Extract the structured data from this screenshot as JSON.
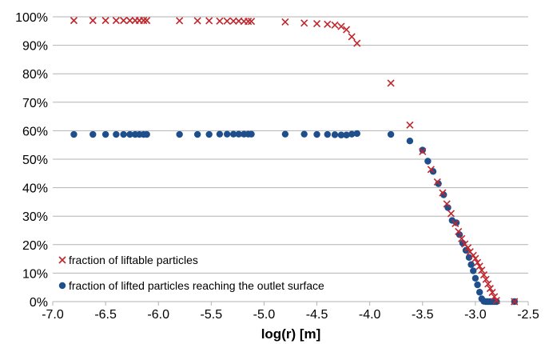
{
  "chart_data": {
    "type": "scatter",
    "xlabel": "log(r) [m]",
    "ylabel": "",
    "xlim": [
      -7.0,
      -2.5
    ],
    "ylim": [
      0,
      100
    ],
    "x_ticks": [
      "-7.0",
      "-6.5",
      "-6.0",
      "-5.5",
      "-5.0",
      "-4.5",
      "-4.0",
      "-3.5",
      "-3.0",
      "-2.5"
    ],
    "y_ticks": [
      "0%",
      "10%",
      "20%",
      "30%",
      "40%",
      "50%",
      "60%",
      "70%",
      "80%",
      "90%",
      "100%"
    ],
    "grid": "horizontal",
    "legend_position": "bottom-left",
    "series": [
      {
        "name": "fraction of liftable particles",
        "marker": "x",
        "color": "#c0272d",
        "points": [
          [
            -6.8,
            98.7
          ],
          [
            -6.62,
            98.7
          ],
          [
            -6.5,
            98.7
          ],
          [
            -6.4,
            98.7
          ],
          [
            -6.33,
            98.7
          ],
          [
            -6.27,
            98.7
          ],
          [
            -6.22,
            98.7
          ],
          [
            -6.18,
            98.7
          ],
          [
            -6.14,
            98.7
          ],
          [
            -6.11,
            98.7
          ],
          [
            -5.8,
            98.6
          ],
          [
            -5.63,
            98.6
          ],
          [
            -5.52,
            98.6
          ],
          [
            -5.42,
            98.5
          ],
          [
            -5.35,
            98.5
          ],
          [
            -5.29,
            98.5
          ],
          [
            -5.24,
            98.5
          ],
          [
            -5.19,
            98.4
          ],
          [
            -5.15,
            98.4
          ],
          [
            -5.12,
            98.4
          ],
          [
            -4.8,
            98.2
          ],
          [
            -4.62,
            97.8
          ],
          [
            -4.5,
            97.6
          ],
          [
            -4.4,
            97.4
          ],
          [
            -4.33,
            97.1
          ],
          [
            -4.27,
            96.6
          ],
          [
            -4.22,
            95.5
          ],
          [
            -4.17,
            93.0
          ],
          [
            -4.12,
            90.7
          ],
          [
            -3.8,
            76.7
          ],
          [
            -3.62,
            62.0
          ],
          [
            -3.5,
            52.7
          ],
          [
            -3.42,
            46.4
          ],
          [
            -3.36,
            42.0
          ],
          [
            -3.31,
            38.2
          ],
          [
            -3.27,
            34.3
          ],
          [
            -3.23,
            30.9
          ],
          [
            -3.19,
            27.4
          ],
          [
            -3.16,
            24.6
          ],
          [
            -3.13,
            22.1
          ],
          [
            -3.1,
            20.2
          ],
          [
            -3.07,
            18.9
          ],
          [
            -3.05,
            17.5
          ],
          [
            -3.02,
            16.2
          ],
          [
            -3.0,
            15.1
          ],
          [
            -2.98,
            13.7
          ],
          [
            -2.96,
            12.4
          ],
          [
            -2.94,
            11.0
          ],
          [
            -2.92,
            9.4
          ],
          [
            -2.9,
            7.8
          ],
          [
            -2.88,
            6.2
          ],
          [
            -2.86,
            4.6
          ],
          [
            -2.84,
            3.2
          ],
          [
            -2.82,
            1.7
          ],
          [
            -2.8,
            0.4
          ],
          [
            -2.63,
            0.0
          ]
        ]
      },
      {
        "name": "fraction of lifted particles reaching the outlet surface",
        "marker": "circle",
        "color": "#1f4e8c",
        "points": [
          [
            -6.8,
            58.7
          ],
          [
            -6.62,
            58.7
          ],
          [
            -6.5,
            58.7
          ],
          [
            -6.4,
            58.7
          ],
          [
            -6.33,
            58.7
          ],
          [
            -6.27,
            58.7
          ],
          [
            -6.22,
            58.7
          ],
          [
            -6.18,
            58.7
          ],
          [
            -6.14,
            58.7
          ],
          [
            -6.11,
            58.7
          ],
          [
            -5.8,
            58.7
          ],
          [
            -5.63,
            58.7
          ],
          [
            -5.52,
            58.7
          ],
          [
            -5.42,
            58.8
          ],
          [
            -5.35,
            58.8
          ],
          [
            -5.29,
            58.8
          ],
          [
            -5.24,
            58.8
          ],
          [
            -5.19,
            58.8
          ],
          [
            -5.15,
            58.8
          ],
          [
            -5.12,
            58.8
          ],
          [
            -4.8,
            58.8
          ],
          [
            -4.62,
            58.8
          ],
          [
            -4.5,
            58.7
          ],
          [
            -4.4,
            58.7
          ],
          [
            -4.33,
            58.6
          ],
          [
            -4.27,
            58.5
          ],
          [
            -4.22,
            58.5
          ],
          [
            -4.17,
            58.8
          ],
          [
            -4.12,
            59.0
          ],
          [
            -3.8,
            58.7
          ],
          [
            -3.62,
            56.4
          ],
          [
            -3.5,
            53.2
          ],
          [
            -3.45,
            49.3
          ],
          [
            -3.4,
            45.7
          ],
          [
            -3.35,
            41.4
          ],
          [
            -3.3,
            37.5
          ],
          [
            -3.26,
            33.0
          ],
          [
            -3.22,
            28.5
          ],
          [
            -3.18,
            27.7
          ],
          [
            -3.15,
            23.5
          ],
          [
            -3.12,
            20.5
          ],
          [
            -3.09,
            18.0
          ],
          [
            -3.06,
            15.5
          ],
          [
            -3.04,
            13.0
          ],
          [
            -3.02,
            10.8
          ],
          [
            -3.0,
            8.2
          ],
          [
            -2.98,
            5.9
          ],
          [
            -2.96,
            3.3
          ],
          [
            -2.94,
            1.0
          ],
          [
            -2.92,
            0.1
          ],
          [
            -2.9,
            0.0
          ],
          [
            -2.88,
            0.0
          ],
          [
            -2.86,
            0.0
          ],
          [
            -2.84,
            0.0
          ],
          [
            -2.82,
            0.0
          ],
          [
            -2.8,
            0.0
          ],
          [
            -2.63,
            0.0
          ]
        ]
      }
    ]
  }
}
